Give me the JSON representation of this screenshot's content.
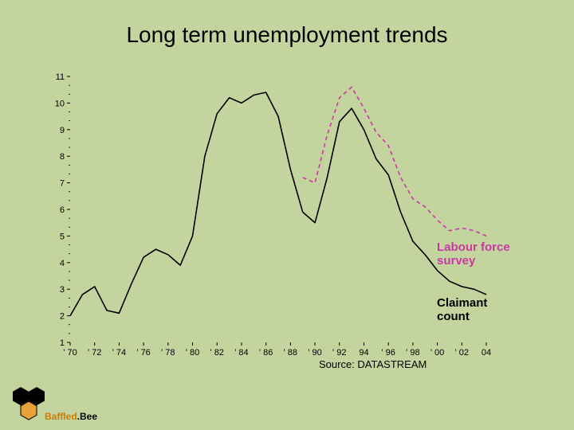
{
  "title": "Long term unemployment trends",
  "legend": {
    "lfs": "Labour force\nsurvey",
    "cc": "Claimant\ncount",
    "lfs_color": "#c83aa3",
    "cc_color": "#000000"
  },
  "source": "Source: DATASTREAM",
  "brand": {
    "part1": "Baffled",
    "part2": "Bee",
    "sep": "."
  },
  "chart": {
    "type": "line",
    "background_color": "#c4d49e",
    "axis_color": "#000000",
    "axis_fontsize": 11,
    "axis_fontfamily": "Arial, sans-serif",
    "xlim": [
      1970,
      2004
    ],
    "ylim": [
      1,
      11
    ],
    "yticks": [
      1,
      2,
      3,
      4,
      5,
      6,
      7,
      8,
      9,
      10,
      11
    ],
    "xticks": [
      1970,
      1972,
      1974,
      1976,
      1978,
      1980,
      1982,
      1984,
      1986,
      1988,
      1990,
      1992,
      1994,
      1996,
      1998,
      2000,
      2002,
      2004
    ],
    "xtick_labels": [
      "70",
      "72",
      "74",
      "76",
      "78",
      "80",
      "82",
      "84",
      "86",
      "88",
      "90",
      "92",
      "94",
      "96",
      "98",
      "00",
      "02",
      "04"
    ],
    "xtick_prefix": "' ",
    "xtick_noquote_indices": [
      12,
      17
    ],
    "tick_len": 4,
    "minor_y_between": 2,
    "series": {
      "claimant": {
        "color": "#000000",
        "width": 1.6,
        "dash": "",
        "points": [
          [
            1970,
            2.0
          ],
          [
            1971,
            2.8
          ],
          [
            1972,
            3.1
          ],
          [
            1973,
            2.2
          ],
          [
            1974,
            2.1
          ],
          [
            1975,
            3.2
          ],
          [
            1976,
            4.2
          ],
          [
            1977,
            4.5
          ],
          [
            1978,
            4.3
          ],
          [
            1979,
            3.9
          ],
          [
            1980,
            5.0
          ],
          [
            1981,
            8.0
          ],
          [
            1982,
            9.6
          ],
          [
            1983,
            10.2
          ],
          [
            1984,
            10.0
          ],
          [
            1985,
            10.3
          ],
          [
            1986,
            10.4
          ],
          [
            1987,
            9.5
          ],
          [
            1988,
            7.5
          ],
          [
            1989,
            5.9
          ],
          [
            1990,
            5.5
          ],
          [
            1991,
            7.2
          ],
          [
            1992,
            9.3
          ],
          [
            1993,
            9.8
          ],
          [
            1994,
            9.0
          ],
          [
            1995,
            7.9
          ],
          [
            1996,
            7.3
          ],
          [
            1997,
            5.9
          ],
          [
            1998,
            4.8
          ],
          [
            1999,
            4.3
          ],
          [
            2000,
            3.7
          ],
          [
            2001,
            3.3
          ],
          [
            2002,
            3.1
          ],
          [
            2003,
            3.0
          ],
          [
            2004,
            2.8
          ]
        ]
      },
      "lfs": {
        "color": "#c83aa3",
        "width": 1.6,
        "dash": "5,4",
        "points": [
          [
            1989,
            7.2
          ],
          [
            1990,
            7.0
          ],
          [
            1991,
            8.8
          ],
          [
            1992,
            10.2
          ],
          [
            1993,
            10.6
          ],
          [
            1994,
            9.8
          ],
          [
            1995,
            8.9
          ],
          [
            1996,
            8.4
          ],
          [
            1997,
            7.2
          ],
          [
            1998,
            6.4
          ],
          [
            1999,
            6.1
          ],
          [
            2000,
            5.6
          ],
          [
            2001,
            5.2
          ],
          [
            2002,
            5.3
          ],
          [
            2003,
            5.2
          ],
          [
            2004,
            5.0
          ]
        ]
      }
    }
  },
  "colors": {
    "bg": "#c4d49e",
    "hex_fill": "#e8a03a",
    "hex_stroke": "#000000"
  }
}
